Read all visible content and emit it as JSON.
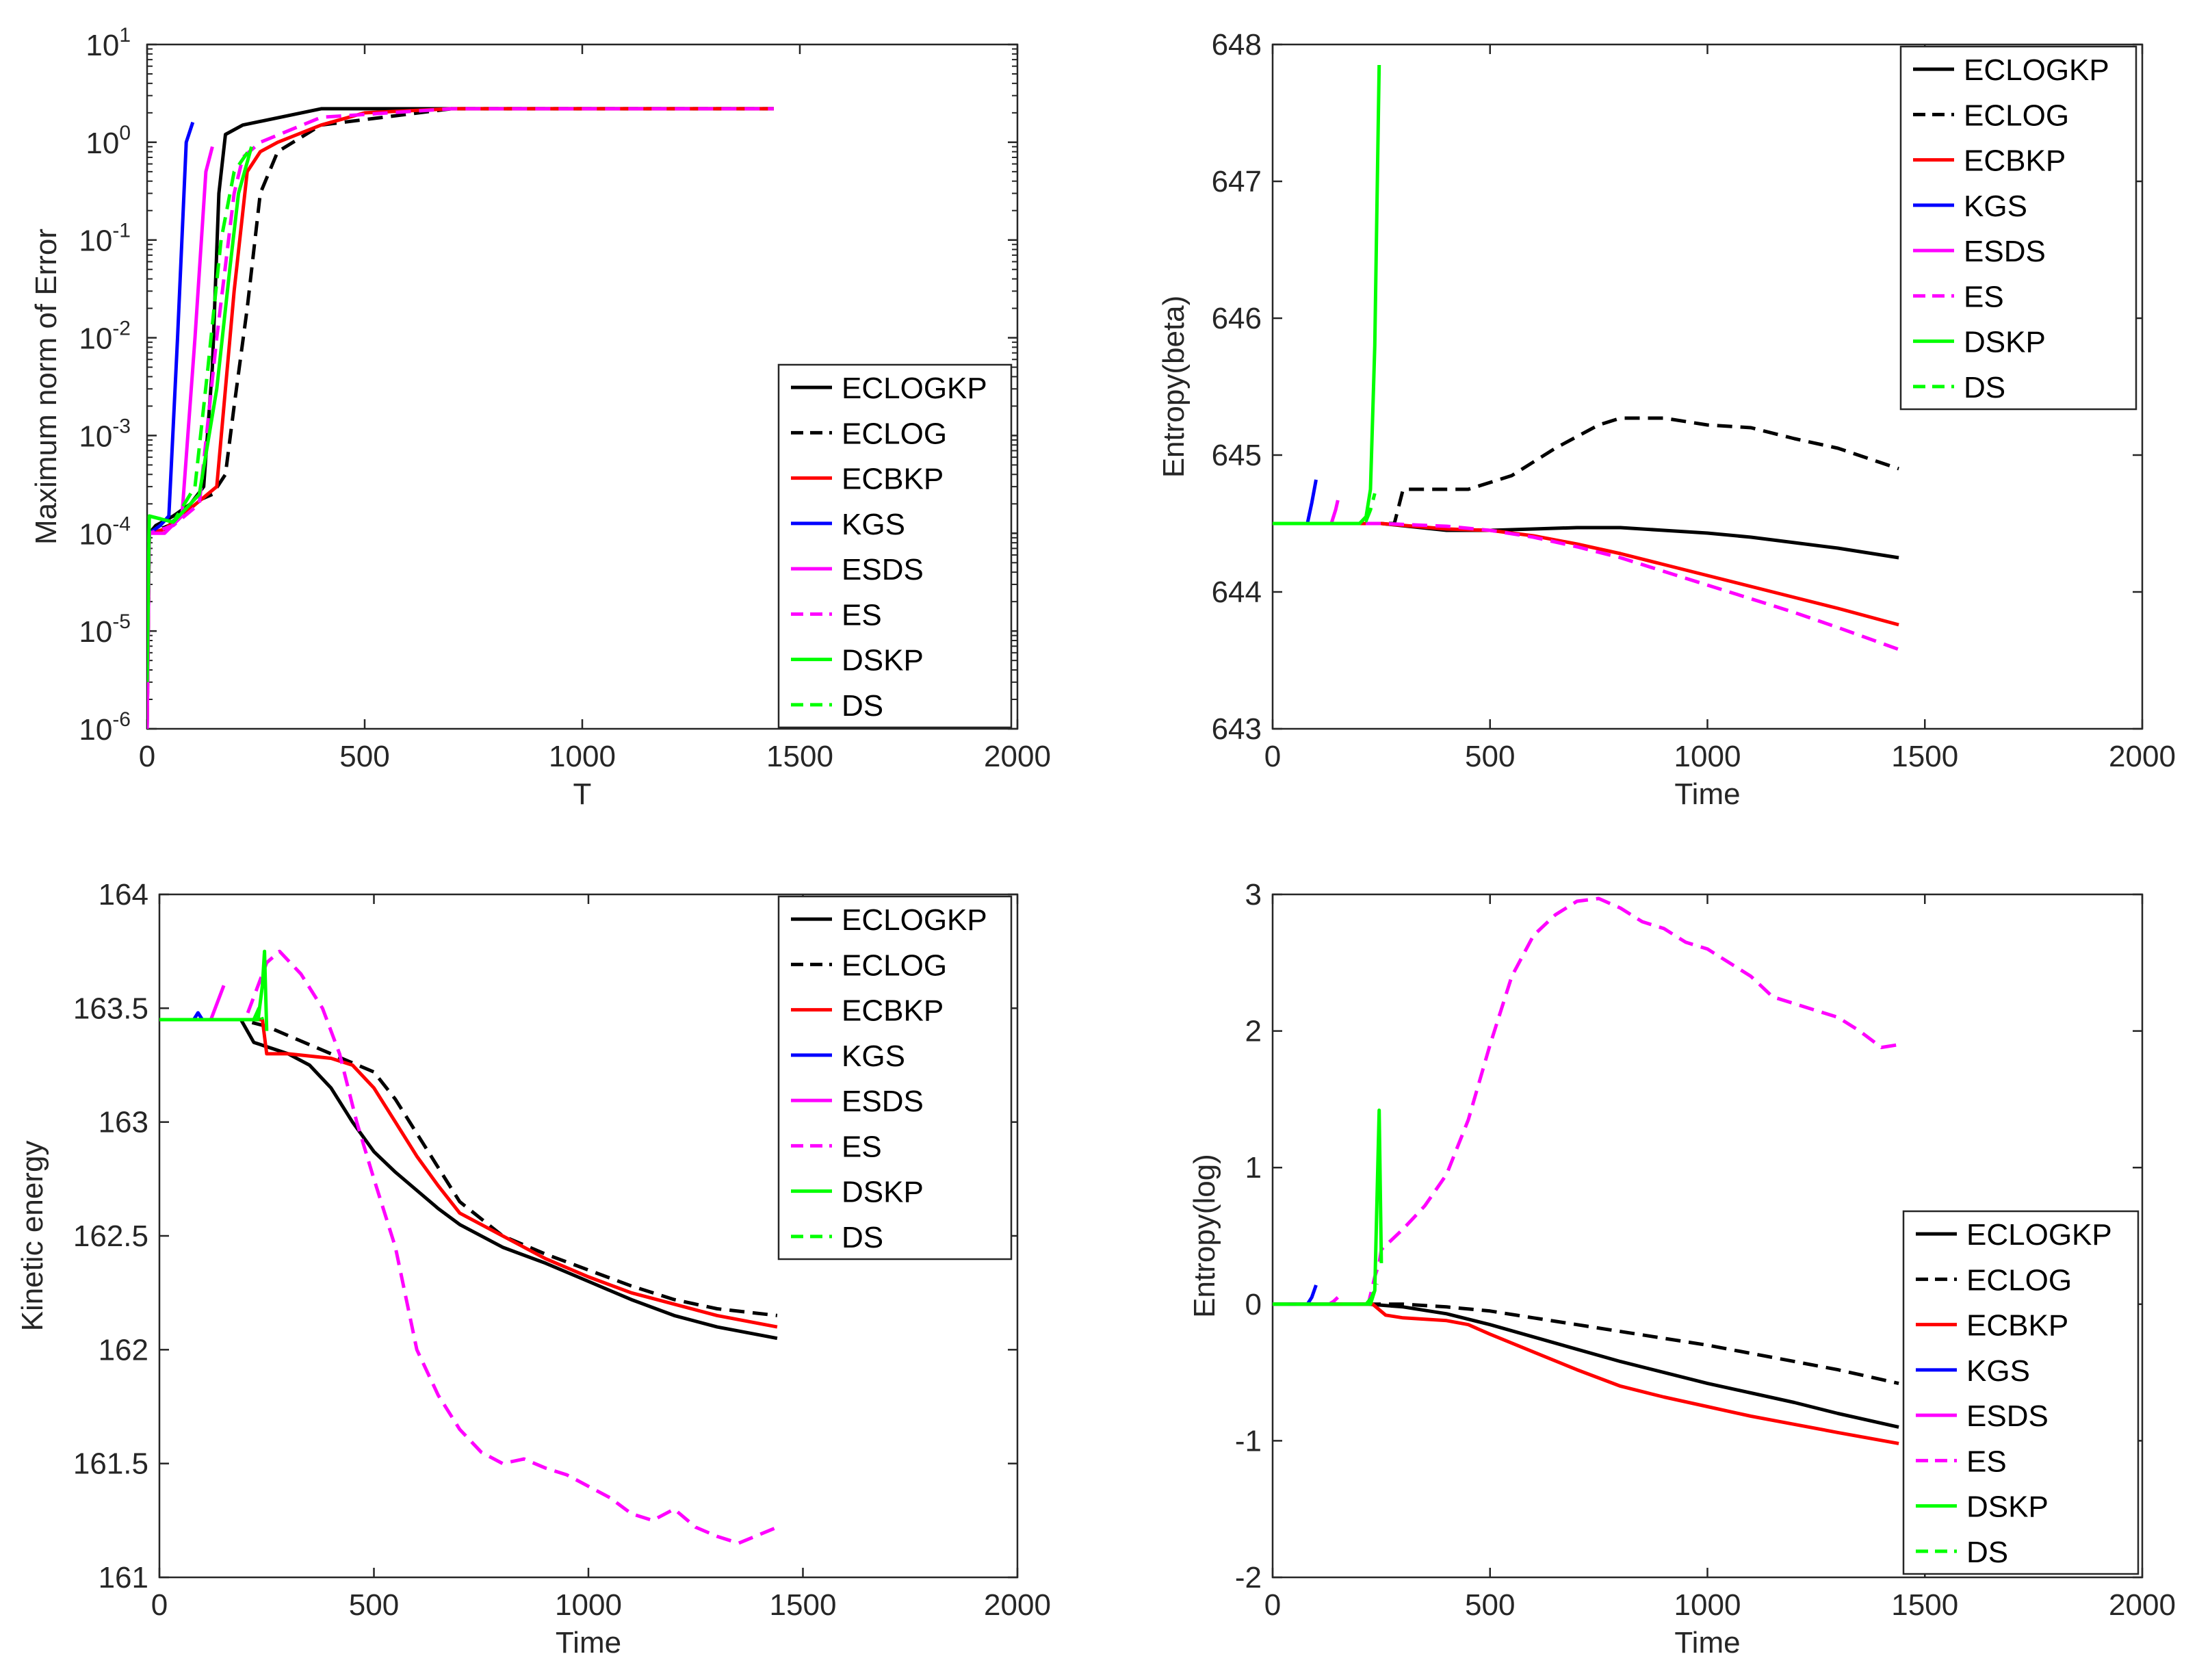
{
  "legend_labels": [
    "ECLOGKP",
    "ECLOG",
    "ECBKP",
    "KGS",
    "ESDS",
    "ES",
    "DSKP",
    "DS"
  ],
  "series_styles": {
    "ECLOGKP": {
      "color": "#000000",
      "dash": false
    },
    "ECLOG": {
      "color": "#000000",
      "dash": true
    },
    "ECBKP": {
      "color": "#ff0000",
      "dash": false
    },
    "KGS": {
      "color": "#0000ff",
      "dash": false
    },
    "ESDS": {
      "color": "#ff00ff",
      "dash": false
    },
    "ES": {
      "color": "#ff00ff",
      "dash": true
    },
    "DSKP": {
      "color": "#00ff00",
      "dash": false
    },
    "DS": {
      "color": "#00ff00",
      "dash": true
    }
  },
  "chart_data": [
    {
      "type": "line",
      "ylog": true,
      "xlabel": "T",
      "ylabel": "Maximum norm of Error",
      "xlim": [
        0,
        2000
      ],
      "ylim_exp": [
        -6,
        1
      ],
      "xticks": [
        "0",
        "500",
        "1000",
        "1500",
        "2000"
      ],
      "ytick_base": "10",
      "ytick_exps": [
        "-6",
        "-5",
        "-4",
        "-3",
        "-2",
        "-1",
        "0",
        "1"
      ],
      "legend_position": "bottom-right",
      "series": [
        {
          "name": "ECLOGKP",
          "x": [
            0,
            5,
            20,
            60,
            100,
            130,
            150,
            165,
            180,
            220,
            400,
            700,
            1000,
            1440
          ],
          "y": [
            1e-06,
            0.0001,
            0.00012,
            0.00015,
            0.0002,
            0.0003,
            0.005,
            0.3,
            1.2,
            1.5,
            2.2,
            2.2,
            2.2,
            2.2
          ]
        },
        {
          "name": "ECLOG",
          "x": [
            0,
            5,
            50,
            100,
            150,
            180,
            200,
            230,
            260,
            300,
            400,
            700,
            1000,
            1440
          ],
          "y": [
            1e-06,
            0.0001,
            0.00012,
            0.0002,
            0.00025,
            0.0004,
            0.002,
            0.02,
            0.3,
            0.8,
            1.5,
            2.2,
            2.2,
            2.2
          ]
        },
        {
          "name": "ECBKP",
          "x": [
            0,
            5,
            40,
            100,
            160,
            200,
            230,
            260,
            300,
            400,
            500,
            700,
            1000,
            1440
          ],
          "y": [
            1.2e-06,
            0.0001,
            0.00011,
            0.00018,
            0.0003,
            0.03,
            0.5,
            0.8,
            1.0,
            1.5,
            2.0,
            2.2,
            2.2,
            2.2
          ]
        },
        {
          "name": "KGS",
          "x": [
            0,
            5,
            30,
            50,
            70,
            90,
            105
          ],
          "y": [
            2e-06,
            0.0001,
            0.00012,
            0.00015,
            0.01,
            1.0,
            1.6
          ]
        },
        {
          "name": "ESDS",
          "x": [
            0,
            5,
            40,
            80,
            110,
            135,
            150
          ],
          "y": [
            1e-06,
            0.0001,
            0.0001,
            0.00015,
            0.01,
            0.5,
            0.9
          ]
        },
        {
          "name": "ES",
          "x": [
            0,
            5,
            60,
            120,
            160,
            200,
            220,
            260,
            400,
            700,
            1000,
            1440
          ],
          "y": [
            1e-06,
            0.0001,
            0.00012,
            0.0002,
            0.01,
            0.3,
            0.7,
            1.0,
            1.8,
            2.2,
            2.2,
            2.2
          ]
        },
        {
          "name": "DSKP",
          "x": [
            0,
            5,
            60,
            120,
            160,
            190,
            210,
            240
          ],
          "y": [
            3e-06,
            0.00015,
            0.00013,
            0.00025,
            0.003,
            0.05,
            0.3,
            0.9
          ]
        },
        {
          "name": "DS",
          "x": [
            0,
            5,
            60,
            110,
            140,
            170,
            200,
            240
          ],
          "y": [
            3e-06,
            0.00015,
            0.00013,
            0.0003,
            0.005,
            0.1,
            0.5,
            0.9
          ]
        }
      ]
    },
    {
      "type": "line",
      "xlabel": "Time",
      "ylabel": "Entropy(beta)",
      "xlim": [
        0,
        2000
      ],
      "ylim": [
        643,
        648
      ],
      "xticks": [
        "0",
        "500",
        "1000",
        "1500",
        "2000"
      ],
      "yticks": [
        "643",
        "644",
        "645",
        "646",
        "647",
        "648"
      ],
      "legend_position": "top-right",
      "series": [
        {
          "name": "ECLOGKP",
          "x": [
            0,
            200,
            250,
            400,
            500,
            600,
            700,
            800,
            900,
            1000,
            1100,
            1200,
            1300,
            1440
          ],
          "y": [
            644.5,
            644.5,
            644.5,
            644.45,
            644.45,
            644.46,
            644.47,
            644.47,
            644.45,
            644.43,
            644.4,
            644.36,
            644.32,
            644.25
          ]
        },
        {
          "name": "ECLOG",
          "x": [
            0,
            280,
            300,
            320,
            450,
            550,
            650,
            750,
            800,
            900,
            1000,
            1100,
            1200,
            1300,
            1440
          ],
          "y": [
            644.5,
            644.5,
            644.75,
            644.75,
            644.75,
            644.85,
            645.05,
            645.22,
            645.27,
            645.27,
            645.22,
            645.2,
            645.12,
            645.05,
            644.9
          ]
        },
        {
          "name": "ECBKP",
          "x": [
            0,
            200,
            250,
            400,
            500,
            600,
            700,
            800,
            900,
            1000,
            1100,
            1200,
            1300,
            1440
          ],
          "y": [
            644.5,
            644.5,
            644.5,
            644.46,
            644.45,
            644.41,
            644.35,
            644.28,
            644.2,
            644.12,
            644.04,
            643.96,
            643.88,
            643.76
          ]
        },
        {
          "name": "KGS",
          "x": [
            0,
            80,
            90,
            100
          ],
          "y": [
            644.5,
            644.5,
            644.65,
            644.82
          ]
        },
        {
          "name": "ESDS",
          "x": [
            0,
            135,
            145,
            150
          ],
          "y": [
            644.5,
            644.5,
            644.6,
            644.67
          ]
        },
        {
          "name": "ES",
          "x": [
            0,
            200,
            250,
            400,
            500,
            600,
            700,
            800,
            900,
            1000,
            1100,
            1200,
            1300,
            1440
          ],
          "y": [
            644.5,
            644.5,
            644.5,
            644.48,
            644.45,
            644.4,
            644.33,
            644.25,
            644.15,
            644.05,
            643.95,
            643.85,
            643.74,
            643.58
          ]
        },
        {
          "name": "DSKP",
          "x": [
            0,
            200,
            215,
            225,
            235,
            245
          ],
          "y": [
            644.5,
            644.5,
            644.55,
            644.75,
            645.8,
            647.85
          ]
        },
        {
          "name": "DS",
          "x": [
            0,
            205,
            215,
            225,
            235
          ],
          "y": [
            644.5,
            644.5,
            644.52,
            644.6,
            644.72
          ]
        }
      ]
    },
    {
      "type": "line",
      "xlabel": "Time",
      "ylabel": "Kinetic energy",
      "xlim": [
        0,
        2000
      ],
      "ylim": [
        161,
        164
      ],
      "xticks": [
        "0",
        "500",
        "1000",
        "1500",
        "2000"
      ],
      "yticks": [
        "161",
        "161.5",
        "162",
        "162.5",
        "163",
        "163.5",
        "164"
      ],
      "legend_position": "top-right",
      "series": [
        {
          "name": "ECLOGKP",
          "x": [
            0,
            190,
            220,
            300,
            350,
            400,
            450,
            500,
            550,
            600,
            650,
            700,
            800,
            900,
            1000,
            1100,
            1200,
            1300,
            1440
          ],
          "y": [
            163.45,
            163.45,
            163.35,
            163.3,
            163.25,
            163.15,
            163.0,
            162.87,
            162.78,
            162.7,
            162.62,
            162.55,
            162.45,
            162.38,
            162.3,
            162.22,
            162.15,
            162.1,
            162.05
          ]
        },
        {
          "name": "ECLOG",
          "x": [
            0,
            190,
            250,
            300,
            400,
            500,
            550,
            600,
            650,
            700,
            800,
            900,
            1000,
            1100,
            1200,
            1300,
            1440
          ],
          "y": [
            163.45,
            163.45,
            163.42,
            163.38,
            163.3,
            163.22,
            163.1,
            162.95,
            162.8,
            162.65,
            162.5,
            162.42,
            162.35,
            162.28,
            162.22,
            162.18,
            162.15
          ]
        },
        {
          "name": "ECBKP",
          "x": [
            0,
            240,
            250,
            300,
            400,
            450,
            500,
            550,
            600,
            650,
            700,
            800,
            900,
            1000,
            1100,
            1200,
            1300,
            1440
          ],
          "y": [
            163.45,
            163.45,
            163.3,
            163.3,
            163.28,
            163.25,
            163.15,
            163.0,
            162.85,
            162.72,
            162.6,
            162.5,
            162.4,
            162.32,
            162.25,
            162.2,
            162.15,
            162.1
          ]
        },
        {
          "name": "KGS",
          "x": [
            0,
            80,
            90,
            100
          ],
          "y": [
            163.45,
            163.45,
            163.48,
            163.45
          ]
        },
        {
          "name": "ESDS",
          "x": [
            0,
            120,
            140,
            150
          ],
          "y": [
            163.45,
            163.45,
            163.55,
            163.6
          ]
        },
        {
          "name": "ES",
          "x": [
            0,
            200,
            250,
            280,
            330,
            380,
            420,
            460,
            500,
            550,
            600,
            650,
            700,
            750,
            800,
            850,
            900,
            950,
            1000,
            1050,
            1100,
            1150,
            1200,
            1250,
            1300,
            1350,
            1440
          ],
          "y": [
            163.45,
            163.45,
            163.7,
            163.75,
            163.65,
            163.5,
            163.3,
            163.0,
            162.75,
            162.45,
            162.0,
            161.8,
            161.65,
            161.55,
            161.5,
            161.52,
            161.48,
            161.45,
            161.4,
            161.35,
            161.28,
            161.25,
            161.3,
            161.22,
            161.18,
            161.15,
            161.22
          ]
        },
        {
          "name": "DSKP",
          "x": [
            0,
            230,
            240,
            245,
            250
          ],
          "y": [
            163.45,
            163.45,
            163.6,
            163.75,
            163.4
          ]
        },
        {
          "name": "DS",
          "x": [
            0,
            220,
            232,
            240
          ],
          "y": [
            163.45,
            163.45,
            163.5,
            163.45
          ]
        }
      ]
    },
    {
      "type": "line",
      "xlabel": "Time",
      "ylabel": "Entropy(log)",
      "xlim": [
        0,
        2000
      ],
      "ylim": [
        -2,
        3
      ],
      "xticks": [
        "0",
        "500",
        "1000",
        "1500",
        "2000"
      ],
      "yticks": [
        "-2",
        "-1",
        "0",
        "1",
        "2",
        "3"
      ],
      "legend_position": "bottom-right",
      "series": [
        {
          "name": "ECLOGKP",
          "x": [
            0,
            220,
            300,
            400,
            500,
            600,
            700,
            800,
            900,
            1000,
            1100,
            1200,
            1300,
            1440
          ],
          "y": [
            0,
            0,
            -0.02,
            -0.07,
            -0.15,
            -0.24,
            -0.33,
            -0.42,
            -0.5,
            -0.58,
            -0.65,
            -0.72,
            -0.8,
            -0.9
          ]
        },
        {
          "name": "ECLOG",
          "x": [
            0,
            250,
            300,
            400,
            500,
            600,
            700,
            800,
            900,
            1000,
            1100,
            1200,
            1300,
            1440
          ],
          "y": [
            0,
            0,
            0,
            -0.02,
            -0.05,
            -0.1,
            -0.15,
            -0.2,
            -0.25,
            -0.3,
            -0.36,
            -0.42,
            -0.48,
            -0.58
          ]
        },
        {
          "name": "ECBKP",
          "x": [
            0,
            230,
            260,
            300,
            400,
            450,
            500,
            600,
            700,
            800,
            900,
            1000,
            1100,
            1200,
            1300,
            1440
          ],
          "y": [
            0,
            0,
            -0.08,
            -0.1,
            -0.12,
            -0.15,
            -0.22,
            -0.35,
            -0.48,
            -0.6,
            -0.68,
            -0.75,
            -0.82,
            -0.88,
            -0.94,
            -1.02
          ]
        },
        {
          "name": "KGS",
          "x": [
            0,
            80,
            90,
            100
          ],
          "y": [
            0,
            0,
            0.05,
            0.14
          ]
        },
        {
          "name": "ESDS",
          "x": [
            0,
            130,
            140,
            150
          ],
          "y": [
            0,
            0,
            0.02,
            0.05
          ]
        },
        {
          "name": "ES",
          "x": [
            0,
            220,
            235,
            245,
            250,
            300,
            350,
            400,
            450,
            500,
            550,
            600,
            650,
            700,
            750,
            800,
            850,
            900,
            950,
            1000,
            1050,
            1100,
            1150,
            1200,
            1250,
            1300,
            1350,
            1400,
            1440
          ],
          "y": [
            0,
            0,
            0.2,
            0.3,
            0.4,
            0.55,
            0.72,
            0.95,
            1.35,
            1.9,
            2.4,
            2.7,
            2.85,
            2.95,
            2.97,
            2.9,
            2.8,
            2.75,
            2.65,
            2.6,
            2.5,
            2.4,
            2.25,
            2.2,
            2.15,
            2.1,
            2.0,
            1.88,
            1.9
          ]
        },
        {
          "name": "DSKP",
          "x": [
            0,
            225,
            235,
            245,
            250
          ],
          "y": [
            0,
            0,
            0.1,
            1.42,
            0.3
          ]
        },
        {
          "name": "DS",
          "x": [
            0,
            215,
            228,
            240
          ],
          "y": [
            0,
            0,
            0.05,
            0.15
          ]
        }
      ]
    }
  ]
}
